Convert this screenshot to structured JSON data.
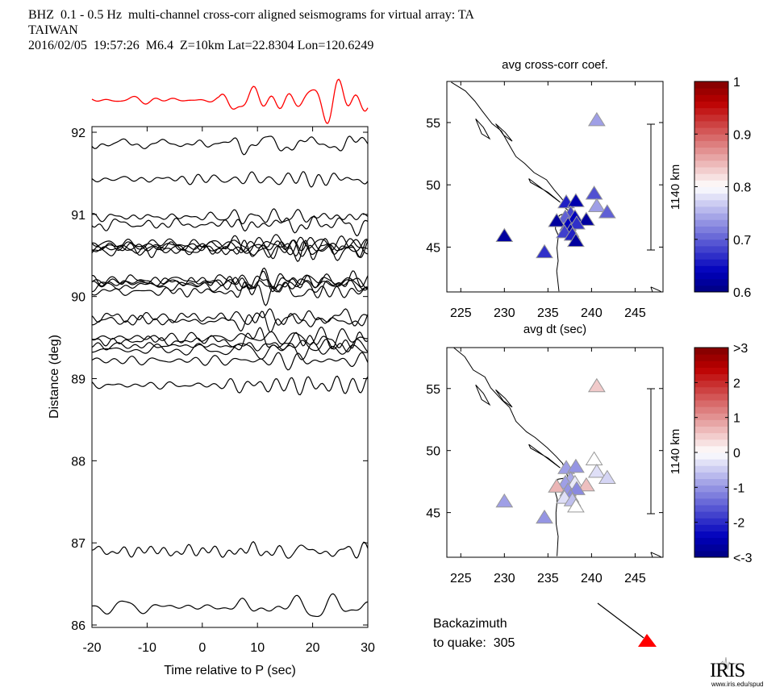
{
  "header": {
    "line1": "BHZ  0.1 - 0.5 Hz  multi-channel cross-corr aligned seismograms for virtual array: TA",
    "line2": "TAIWAN",
    "line3": "2016/02/05  19:57:26  M6.4  Z=10km Lat=22.8304 Lon=120.6249"
  },
  "chart_data": [
    {
      "type": "line",
      "name": "seismogram-section",
      "title": "",
      "xlabel": "Time relative to P (sec)",
      "ylabel": "Distance (deg)",
      "xlim": [
        -20,
        30
      ],
      "ylim": [
        86,
        92
      ],
      "xticks": [
        -20,
        -10,
        0,
        10,
        20,
        30
      ],
      "xtick_labels": [
        "-20",
        "-10",
        "0",
        "10",
        "20",
        "30"
      ],
      "yticks": [
        86,
        87,
        88,
        89,
        90,
        91,
        92
      ],
      "ytick_labels": [
        "86",
        "87",
        "88",
        "89",
        "90",
        "91",
        "92"
      ],
      "stack_trace": {
        "color": "#ff0000",
        "label": "stacked beam (red)"
      },
      "trace_color": "#000000",
      "trace_distances_deg": [
        91.86,
        91.43,
        90.97,
        90.88,
        90.64,
        90.62,
        90.6,
        90.58,
        90.56,
        90.2,
        90.18,
        90.16,
        90.13,
        90.06,
        89.75,
        89.7,
        89.5,
        89.46,
        89.4,
        89.35,
        89.22,
        88.92,
        86.9,
        86.22
      ],
      "grid": false
    },
    {
      "type": "scatter",
      "name": "map-avg-cross-corr",
      "title": "avg cross-corr coef.",
      "xtick_labels": [
        "225",
        "230",
        "235",
        "240",
        "245"
      ],
      "xticks": [
        225,
        230,
        235,
        240,
        245
      ],
      "yticks": [
        45,
        50,
        55
      ],
      "ytick_labels": [
        "45",
        "50",
        "55"
      ],
      "xlim": [
        223.4,
        248.2
      ],
      "ylim": [
        41.4,
        58.3
      ],
      "scale_bar_label": "1140 km",
      "colorbar": {
        "min": 0.6,
        "max": 1.0,
        "ticks": [
          "0.6",
          "0.7",
          "0.8",
          "0.9",
          "1"
        ]
      },
      "stations": [
        {
          "lon": 240.6,
          "lat": 55.2,
          "value": 0.74
        },
        {
          "lon": 230.0,
          "lat": 45.9,
          "value": 0.62
        },
        {
          "lon": 234.6,
          "lat": 44.6,
          "value": 0.67
        },
        {
          "lon": 237.1,
          "lat": 48.6,
          "value": 0.66
        },
        {
          "lon": 238.2,
          "lat": 48.7,
          "value": 0.63
        },
        {
          "lon": 240.3,
          "lat": 49.3,
          "value": 0.69
        },
        {
          "lon": 240.6,
          "lat": 48.3,
          "value": 0.74
        },
        {
          "lon": 241.8,
          "lat": 47.8,
          "value": 0.7
        },
        {
          "lon": 237.6,
          "lat": 47.7,
          "value": 0.68
        },
        {
          "lon": 237.0,
          "lat": 47.4,
          "value": 0.7
        },
        {
          "lon": 238.1,
          "lat": 47.4,
          "value": 0.64
        },
        {
          "lon": 239.4,
          "lat": 47.2,
          "value": 0.62
        },
        {
          "lon": 236.0,
          "lat": 47.1,
          "value": 0.62
        },
        {
          "lon": 237.3,
          "lat": 46.8,
          "value": 0.64
        },
        {
          "lon": 238.3,
          "lat": 46.9,
          "value": 0.67
        },
        {
          "lon": 237.6,
          "lat": 46.3,
          "value": 0.63
        },
        {
          "lon": 236.9,
          "lat": 46.2,
          "value": 0.68
        },
        {
          "lon": 237.8,
          "lat": 46.0,
          "value": 0.66
        },
        {
          "lon": 238.2,
          "lat": 45.5,
          "value": 0.62
        }
      ]
    },
    {
      "type": "scatter",
      "name": "map-avg-dt",
      "title": "avg dt (sec)",
      "xtick_labels": [
        "225",
        "230",
        "235",
        "240",
        "245"
      ],
      "xticks": [
        225,
        230,
        235,
        240,
        245
      ],
      "yticks": [
        45,
        50,
        55
      ],
      "ytick_labels": [
        "45",
        "50",
        "55"
      ],
      "xlim": [
        223.4,
        248.2
      ],
      "ylim": [
        41.4,
        58.3
      ],
      "scale_bar_label": "1140 km",
      "colorbar": {
        "min": -3,
        "max": 3,
        "ticks": [
          "<-3",
          "-2",
          "-1",
          "0",
          "1",
          "2",
          ">3"
        ]
      },
      "stations": [
        {
          "lon": 240.6,
          "lat": 55.2,
          "value": 0.5
        },
        {
          "lon": 230.0,
          "lat": 45.9,
          "value": -0.9
        },
        {
          "lon": 234.6,
          "lat": 44.6,
          "value": -1.0
        },
        {
          "lon": 237.1,
          "lat": 48.6,
          "value": -0.9
        },
        {
          "lon": 238.2,
          "lat": 48.7,
          "value": -1.0
        },
        {
          "lon": 240.3,
          "lat": 49.3,
          "value": 0.0
        },
        {
          "lon": 240.6,
          "lat": 48.3,
          "value": -0.3
        },
        {
          "lon": 241.8,
          "lat": 47.8,
          "value": -0.4
        },
        {
          "lon": 237.6,
          "lat": 47.7,
          "value": -0.8
        },
        {
          "lon": 237.0,
          "lat": 47.4,
          "value": -0.9
        },
        {
          "lon": 238.1,
          "lat": 47.4,
          "value": -0.2
        },
        {
          "lon": 239.4,
          "lat": 47.2,
          "value": 0.6
        },
        {
          "lon": 236.0,
          "lat": 47.1,
          "value": 0.7
        },
        {
          "lon": 237.3,
          "lat": 46.8,
          "value": -1.0
        },
        {
          "lon": 238.3,
          "lat": 46.9,
          "value": -1.1
        },
        {
          "lon": 237.6,
          "lat": 46.3,
          "value": -1.1
        },
        {
          "lon": 236.9,
          "lat": 46.2,
          "value": -0.3
        },
        {
          "lon": 237.8,
          "lat": 46.0,
          "value": -0.6
        },
        {
          "lon": 238.2,
          "lat": 45.5,
          "value": 0.0
        }
      ]
    }
  ],
  "backazimuth": {
    "line1": "Backazimuth",
    "line2": "to quake:  305",
    "value_deg": 305,
    "arrow_color": "#000000",
    "marker_color": "#ff0000"
  },
  "logo": {
    "text": "IRIS",
    "url": "www.iris.edu/spud"
  }
}
